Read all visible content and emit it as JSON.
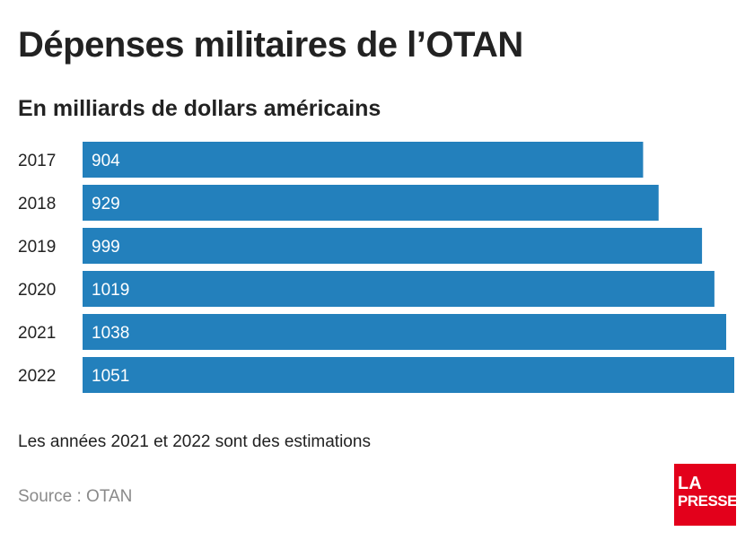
{
  "header": {
    "title": "Dépenses militaires de l’OTAN",
    "subtitle": "En milliards de dollars américains"
  },
  "footer": {
    "note": "Les années 2021 et 2022 sont des estimations",
    "source": "Source : OTAN",
    "logo_line1": "LA",
    "logo_line2": "PRESSE"
  },
  "colors": {
    "bar": "#2380bc",
    "bar_label": "#ffffff",
    "logo": "#e3001b"
  },
  "chart_data": {
    "type": "bar",
    "orientation": "horizontal",
    "title": "Dépenses militaires de l’OTAN",
    "subtitle": "En milliards de dollars américains",
    "categories": [
      "2017",
      "2018",
      "2019",
      "2020",
      "2021",
      "2022"
    ],
    "values": [
      904,
      929,
      999,
      1019,
      1038,
      1051
    ],
    "value_labels": [
      "904",
      "929",
      "999",
      "1019",
      "1038",
      "1051"
    ],
    "xlim": [
      0,
      1051
    ],
    "grid": false,
    "legend": "none"
  }
}
